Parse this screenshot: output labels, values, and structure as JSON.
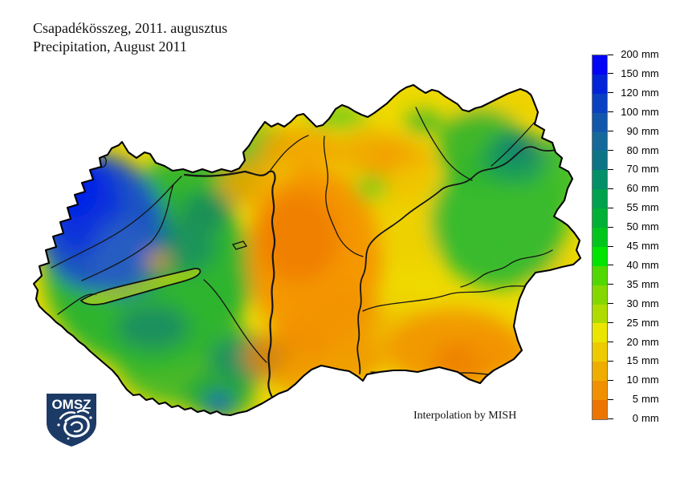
{
  "title": {
    "line1": "Csapadékösszeg, 2011. augusztus",
    "line2": "Precipitation, August 2011"
  },
  "footer": {
    "credit": "Interpolation by MISH"
  },
  "logo": {
    "text": "OMSZ",
    "shield_color": "#1C3A66"
  },
  "legend": {
    "unit": "mm",
    "labels": [
      "200",
      "150",
      "120",
      "100",
      "90",
      "80",
      "70",
      "60",
      "55",
      "50",
      "45",
      "40",
      "35",
      "30",
      "25",
      "20",
      "15",
      "10",
      "5",
      "0"
    ],
    "colors": [
      "#0204F4",
      "#0224D8",
      "#0A40C2",
      "#1257AC",
      "#14699A",
      "#0B7585",
      "#038F68",
      "#00A14E",
      "#00B136",
      "#00C61C",
      "#00E400",
      "#50D800",
      "#84D800",
      "#AEDC00",
      "#EAE600",
      "#EDCB00",
      "#EFAD00",
      "#F09000",
      "#EE7400"
    ]
  }
}
